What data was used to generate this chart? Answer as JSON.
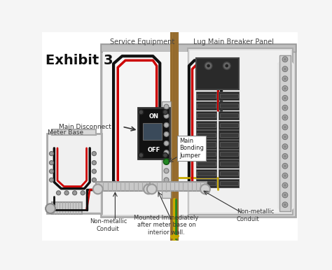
{
  "bg_color": "#f5f5f5",
  "labels": {
    "exhibit": "Exhibit 3",
    "service_equipment": "Service Equipment",
    "lug_panel": "Lug Main Breaker Panel",
    "main_disconnect": "Main Disconnect",
    "meter_base": "Meter Base",
    "main_bonding": "Main\nBonding\nJumper",
    "non_metallic_left": "Non-metallic\nConduit",
    "non_metallic_right": "Non-metallic\nConduit",
    "mounted": "Mounted Immediately\nafter meter base on\ninterior wall."
  },
  "colors": {
    "red_wire": "#cc0000",
    "black_wire": "#111111",
    "white_wire": "#e8e8e8",
    "green_wire": "#228822",
    "bare_wire": "#c8a800",
    "panel_bg": "#e8e8e8",
    "panel_inner": "#f0f0f0",
    "panel_border": "#aaaaaa",
    "breaker_bg": "#1a1a1a",
    "wood_brown": "#8B6030",
    "conduit_gray": "#b8b8b8",
    "text_dark": "#222222",
    "arrow_color": "#333333",
    "neutral_bar": "#d0d0d0",
    "screw_gray": "#909090"
  }
}
